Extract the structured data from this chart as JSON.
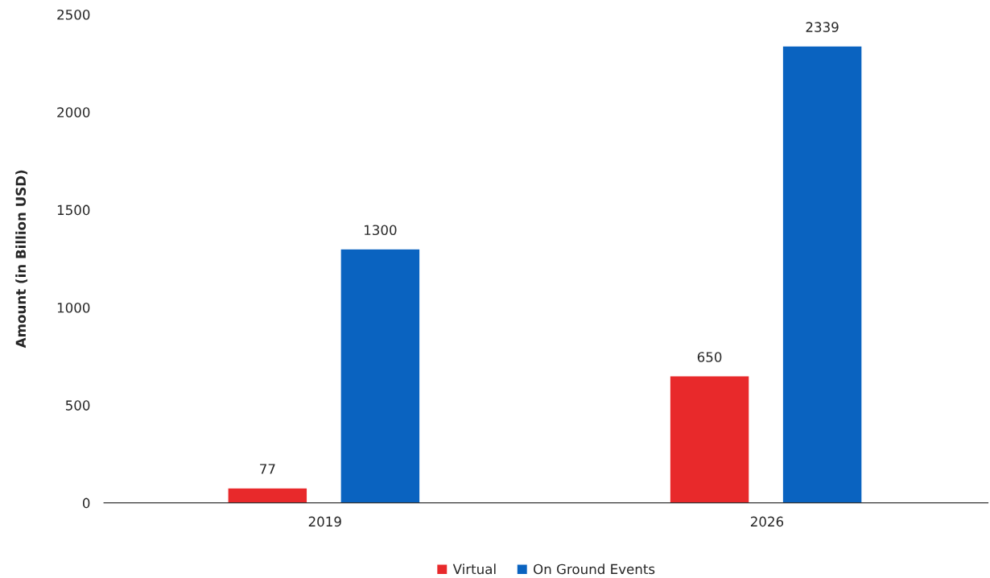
{
  "chart_data": {
    "type": "bar",
    "ylabel": "Amount (in Billion USD)",
    "categories": [
      "2019",
      "2026"
    ],
    "series": [
      {
        "name": "Virtual",
        "color": "#e8292b",
        "values": [
          77,
          650
        ]
      },
      {
        "name": "On Ground Events",
        "color": "#0a63c0",
        "values": [
          1300,
          2339
        ]
      }
    ],
    "ylim": [
      0,
      2500
    ],
    "yticks": [
      0,
      500,
      1000,
      1500,
      2000,
      2500
    ],
    "data_labels": true,
    "grid": false,
    "legend": "bottom"
  }
}
